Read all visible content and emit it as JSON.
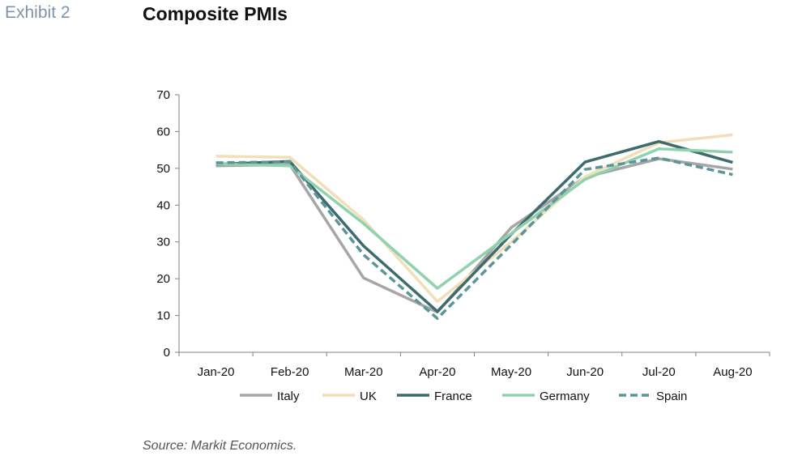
{
  "exhibit_label": "Exhibit 2",
  "source": "Source: Markit Economics.",
  "colors": {
    "Italy": "#a6a6a6",
    "UK": "#f1dfb8",
    "France": "#3d6b6e",
    "Germany": "#8fd2ad",
    "Spain": "#5c9599"
  },
  "chart_data": {
    "type": "line",
    "title": "Composite PMIs",
    "xlabel": "",
    "ylabel": "",
    "categories": [
      "Jan-20",
      "Feb-20",
      "Mar-20",
      "Apr-20",
      "May-20",
      "Jun-20",
      "Jul-20",
      "Aug-20"
    ],
    "ylim": [
      0,
      70
    ],
    "yticks": [
      0,
      10,
      20,
      30,
      40,
      50,
      60,
      70
    ],
    "grid": false,
    "legend_position": "bottom",
    "series": [
      {
        "name": "Italy",
        "values": [
          50.7,
          51.0,
          20.2,
          10.9,
          33.9,
          47.6,
          52.6,
          49.8
        ],
        "dashed": false
      },
      {
        "name": "UK",
        "values": [
          53.3,
          53.0,
          36.0,
          13.8,
          30.0,
          47.7,
          57.0,
          59.1
        ],
        "dashed": false
      },
      {
        "name": "France",
        "values": [
          51.1,
          51.9,
          28.9,
          11.1,
          32.1,
          51.7,
          57.3,
          51.6
        ],
        "dashed": false
      },
      {
        "name": "Germany",
        "values": [
          51.2,
          50.7,
          35.0,
          17.4,
          32.3,
          47.0,
          55.3,
          54.4
        ],
        "dashed": false
      },
      {
        "name": "Spain",
        "values": [
          51.5,
          51.8,
          26.5,
          9.2,
          29.2,
          49.7,
          52.8,
          48.3
        ],
        "dashed": true
      }
    ]
  }
}
